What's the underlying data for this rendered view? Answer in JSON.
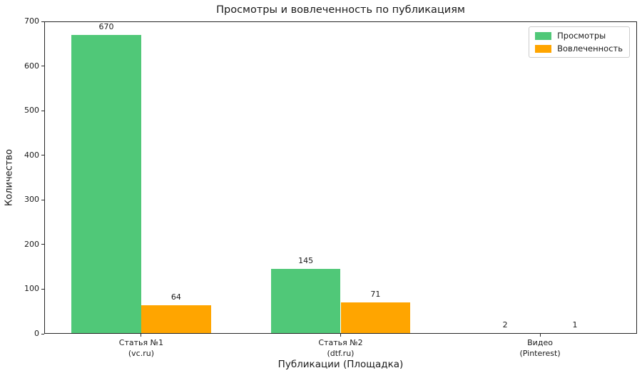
{
  "chart_data": {
    "type": "bar",
    "title": "Просмотры и вовлеченность по публикациям",
    "xlabel": "Публикации (Площадка)",
    "ylabel": "Количество",
    "categories": [
      "Статья №1",
      "Статья №2",
      "Видео"
    ],
    "category_platforms": [
      "(vc.ru)",
      "(dtf.ru)",
      "(Pinterest)"
    ],
    "series": [
      {
        "name": "Просмотры",
        "color": "#50c878",
        "values": [
          670,
          145,
          2
        ]
      },
      {
        "name": "Вовлеченность",
        "color": "#ffa500",
        "values": [
          64,
          71,
          1
        ]
      }
    ],
    "ylim": [
      0,
      700
    ],
    "yticks": [
      0,
      100,
      200,
      300,
      400,
      500,
      600,
      700
    ],
    "bar_width": 0.35,
    "legend_position": "upper right",
    "grid": false,
    "background_color": "#ffffff",
    "spine_color": "#262626"
  }
}
